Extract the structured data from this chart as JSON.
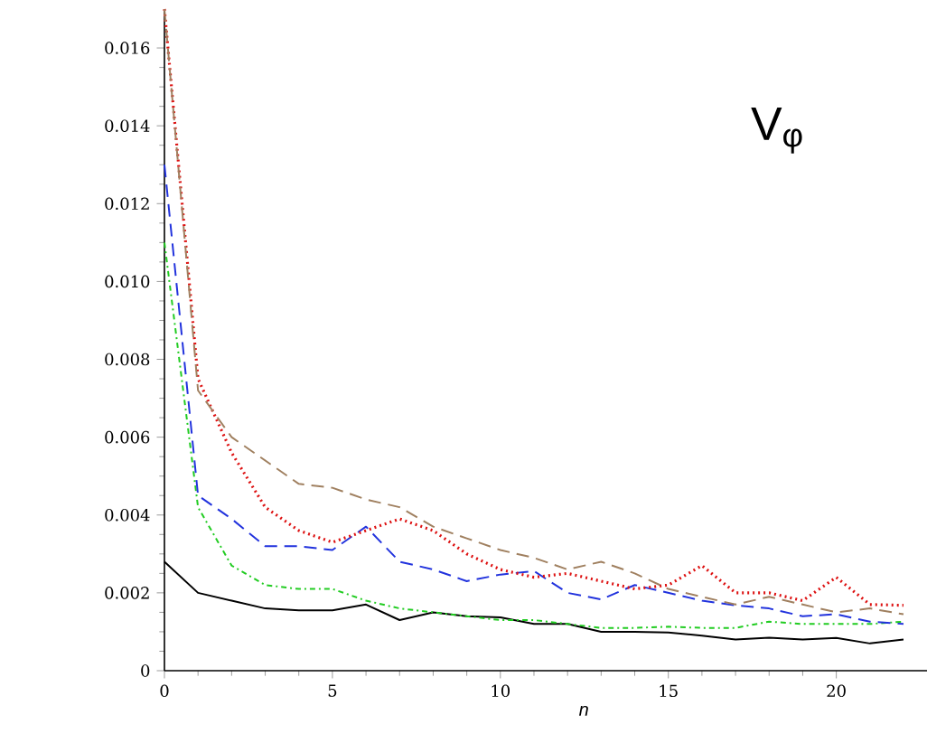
{
  "chart_data": {
    "type": "line",
    "xlabel": "n",
    "x": [
      0,
      1,
      2,
      3,
      4,
      5,
      6,
      7,
      8,
      9,
      10,
      11,
      12,
      13,
      14,
      15,
      16,
      17,
      18,
      19,
      20,
      21,
      22
    ],
    "series": [
      {
        "color": "#000000",
        "line_style": "solid",
        "values": [
          0.0028,
          0.002,
          0.0018,
          0.0016,
          0.00155,
          0.00155,
          0.0017,
          0.0013,
          0.0015,
          0.0014,
          0.00137,
          0.0012,
          0.0012,
          0.001,
          0.001,
          0.00098,
          0.0009,
          0.0008,
          0.00085,
          0.0008,
          0.00084,
          0.0007,
          0.0008
        ]
      },
      {
        "color": "#22cc22",
        "line_style": "dashdot",
        "values": [
          0.011,
          0.0042,
          0.0027,
          0.0022,
          0.0021,
          0.0021,
          0.0018,
          0.0016,
          0.0015,
          0.0014,
          0.0013,
          0.0013,
          0.0012,
          0.0011,
          0.0011,
          0.00113,
          0.0011,
          0.0011,
          0.00126,
          0.0012,
          0.0012,
          0.0012,
          0.00126
        ]
      },
      {
        "color": "#2233dd",
        "line_style": "dashed",
        "values": [
          0.013,
          0.0045,
          0.0039,
          0.0032,
          0.0032,
          0.0031,
          0.0037,
          0.0028,
          0.0026,
          0.0023,
          0.00247,
          0.00256,
          0.002,
          0.00183,
          0.0022,
          0.002,
          0.0018,
          0.00168,
          0.0016,
          0.0014,
          0.00145,
          0.00126,
          0.0012
        ]
      },
      {
        "color": "#dd1111",
        "line_style": "dotted",
        "values": [
          0.017,
          0.0075,
          0.0056,
          0.0042,
          0.0036,
          0.0033,
          0.0036,
          0.0039,
          0.0036,
          0.003,
          0.0026,
          0.0024,
          0.0025,
          0.0023,
          0.0021,
          0.0022,
          0.0027,
          0.002,
          0.002,
          0.0018,
          0.0024,
          0.0017,
          0.00168
        ]
      },
      {
        "color": "#a08060",
        "line_style": "dashed",
        "values": [
          0.017,
          0.0072,
          0.006,
          0.0054,
          0.0048,
          0.0047,
          0.0044,
          0.0042,
          0.0037,
          0.0034,
          0.0031,
          0.0029,
          0.0026,
          0.0028,
          0.0025,
          0.0021,
          0.0019,
          0.0017,
          0.0019,
          0.0017,
          0.0015,
          0.0016,
          0.00145
        ]
      }
    ],
    "xlim": [
      0,
      22.7
    ],
    "ylim": [
      0,
      0.017
    ],
    "xticks": [
      0,
      5,
      10,
      15,
      20
    ],
    "yticks": [
      0,
      {
        "value": 0.002,
        "label": "0.002"
      },
      {
        "value": 0.004,
        "label": "0.004"
      },
      {
        "value": 0.006,
        "label": "0.006"
      },
      {
        "value": 0.008,
        "label": "0.008"
      },
      {
        "value": 0.01,
        "label": "0.010"
      },
      {
        "value": 0.012,
        "label": "0.012"
      },
      {
        "value": 0.014,
        "label": "0.014"
      },
      {
        "value": 0.016,
        "label": "0.016"
      }
    ],
    "annotations": [
      "V$_{φ}$"
    ],
    "grid": false
  }
}
